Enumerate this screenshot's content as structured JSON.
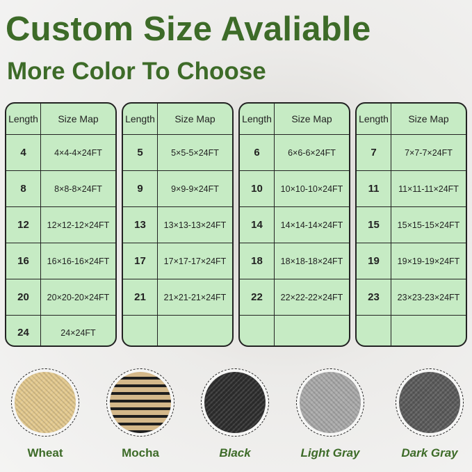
{
  "title": "Custom Size Avaliable",
  "subtitle": "More Color To Choose",
  "table_headers": {
    "length": "Length",
    "size_map": "Size Map"
  },
  "tables": [
    [
      [
        "4",
        "4×4-4×24FT"
      ],
      [
        "8",
        "8×8-8×24FT"
      ],
      [
        "12",
        "12×12-12×24FT"
      ],
      [
        "16",
        "16×16-16×24FT"
      ],
      [
        "20",
        "20×20-20×24FT"
      ],
      [
        "24",
        "24×24FT"
      ]
    ],
    [
      [
        "5",
        "5×5-5×24FT"
      ],
      [
        "9",
        "9×9-9×24FT"
      ],
      [
        "13",
        "13×13-13×24FT"
      ],
      [
        "17",
        "17×17-17×24FT"
      ],
      [
        "21",
        "21×21-21×24FT"
      ],
      [
        "",
        ""
      ]
    ],
    [
      [
        "6",
        "6×6-6×24FT"
      ],
      [
        "10",
        "10×10-10×24FT"
      ],
      [
        "14",
        "14×14-14×24FT"
      ],
      [
        "18",
        "18×18-18×24FT"
      ],
      [
        "22",
        "22×22-22×24FT"
      ],
      [
        "",
        ""
      ]
    ],
    [
      [
        "7",
        "7×7-7×24FT"
      ],
      [
        "11",
        "11×11-11×24FT"
      ],
      [
        "15",
        "15×15-15×24FT"
      ],
      [
        "19",
        "19×19-19×24FT"
      ],
      [
        "23",
        "23×23-23×24FT"
      ],
      [
        "",
        ""
      ]
    ]
  ],
  "colors": [
    {
      "label": "Wheat",
      "swatch": "#e2c88d",
      "italic": false
    },
    {
      "label": "Mocha",
      "swatch": "#8a7352",
      "italic": false
    },
    {
      "label": "Black",
      "swatch": "#2d2d2d",
      "italic": true
    },
    {
      "label": "Light Gray",
      "swatch": "#a9a9a9",
      "italic": true
    },
    {
      "label": "Dark Gray",
      "swatch": "#5a5a5a",
      "italic": true
    }
  ],
  "accent": "#3d6b28"
}
